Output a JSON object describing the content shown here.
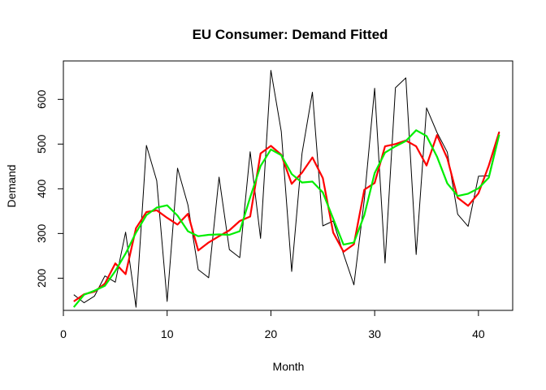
{
  "chart_data": {
    "type": "line",
    "title": "EU Consumer: Demand Fitted",
    "xlabel": "Month",
    "ylabel": "Demand",
    "xlim": [
      0,
      43.3
    ],
    "ylim": [
      128,
      686
    ],
    "xticks": [
      0,
      10,
      20,
      30,
      40
    ],
    "yticks": [
      200,
      300,
      400,
      500,
      600
    ],
    "grid": false,
    "legend": "none",
    "series": [
      {
        "color": "#000000",
        "width": 1,
        "x": [
          1,
          2,
          3,
          4,
          5,
          6,
          7,
          8,
          9,
          10,
          11,
          12,
          13,
          14,
          15,
          16,
          17,
          18,
          19,
          20,
          21,
          22,
          23,
          24,
          25,
          26,
          27,
          28,
          29,
          30,
          31,
          32,
          33,
          34,
          35,
          36,
          37,
          38,
          39,
          40,
          41,
          42
        ],
        "values": [
          163,
          145,
          160,
          205,
          191,
          303,
          135,
          497,
          418,
          148,
          446,
          364,
          219,
          201,
          426,
          264,
          246,
          483,
          289,
          665,
          528,
          215,
          479,
          616,
          317,
          328,
          254,
          185,
          376,
          625,
          234,
          626,
          648,
          253,
          581,
          526,
          482,
          343,
          316,
          428,
          429,
          528
        ]
      },
      {
        "color": "#ff0000",
        "width": 2.2,
        "x": [
          1,
          2,
          3,
          4,
          5,
          6,
          7,
          8,
          9,
          10,
          11,
          12,
          13,
          14,
          15,
          16,
          17,
          18,
          19,
          20,
          21,
          22,
          23,
          24,
          25,
          26,
          27,
          28,
          29,
          30,
          31,
          32,
          33,
          34,
          35,
          36,
          37,
          38,
          39,
          40,
          41,
          42
        ],
        "values": [
          148,
          164,
          170,
          188,
          233,
          209,
          312,
          348,
          352,
          335,
          320,
          344,
          262,
          280,
          294,
          307,
          328,
          338,
          479,
          496,
          476,
          411,
          436,
          470,
          424,
          302,
          259,
          276,
          398,
          413,
          495,
          500,
          508,
          495,
          452,
          520,
          468,
          380,
          362,
          390,
          452,
          527
        ]
      },
      {
        "color": "#00ee00",
        "width": 2.2,
        "x": [
          1,
          2,
          3,
          4,
          5,
          6,
          7,
          8,
          9,
          10,
          11,
          12,
          13,
          14,
          15,
          16,
          17,
          18,
          19,
          20,
          21,
          22,
          23,
          24,
          25,
          26,
          27,
          28,
          29,
          30,
          31,
          32,
          33,
          34,
          35,
          36,
          37,
          38,
          39,
          40,
          41,
          42
        ],
        "values": [
          135,
          163,
          172,
          183,
          216,
          255,
          302,
          341,
          358,
          363,
          340,
          305,
          294,
          297,
          298,
          297,
          305,
          381,
          451,
          488,
          475,
          433,
          414,
          416,
          392,
          333,
          275,
          280,
          341,
          435,
          481,
          495,
          507,
          531,
          518,
          472,
          412,
          384,
          389,
          401,
          425,
          521
        ]
      }
    ]
  }
}
